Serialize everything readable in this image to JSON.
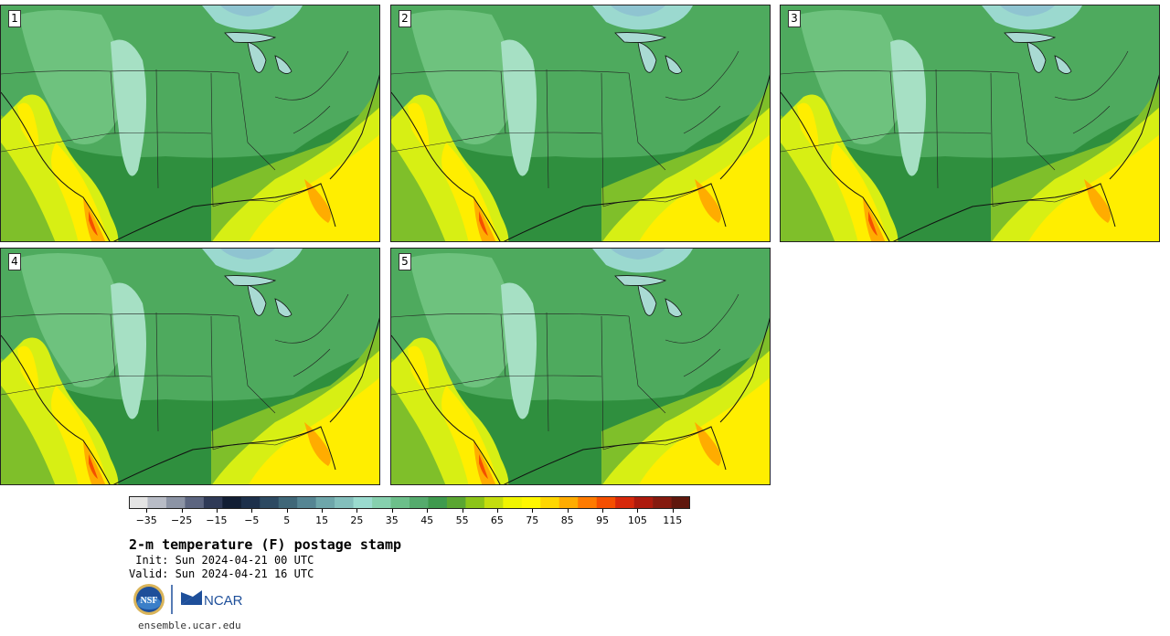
{
  "title": "2-m temperature (F) postage stamp",
  "init_line": " Init: Sun 2024-04-21 00 UTC",
  "valid_line": "Valid: Sun 2024-04-21 16 UTC",
  "site_url": "ensemble.ucar.edu",
  "logos": {
    "left": "nsf-logo",
    "right_text": "NCAR"
  },
  "members": [
    {
      "label": "1"
    },
    {
      "label": "2"
    },
    {
      "label": "3"
    },
    {
      "label": "4"
    },
    {
      "label": "5"
    }
  ],
  "colorbar": {
    "units": "F",
    "tick_labels": [
      "−35",
      "−25",
      "−15",
      "−5",
      "5",
      "15",
      "25",
      "35",
      "45",
      "55",
      "65",
      "75",
      "85",
      "95",
      "105",
      "115"
    ],
    "tick_values": [
      -35,
      -25,
      -15,
      -5,
      5,
      15,
      25,
      35,
      45,
      55,
      65,
      75,
      85,
      95,
      105,
      115
    ],
    "min": -40,
    "max": 120,
    "step": 5,
    "colors": [
      "#e4e4e4",
      "#b8bcc6",
      "#8c94a5",
      "#5c6580",
      "#2f3a57",
      "#121e34",
      "#1d304b",
      "#2d4a62",
      "#3f6778",
      "#558593",
      "#6ea6aa",
      "#83bfbc",
      "#9adbcf",
      "#86d0ae",
      "#6cbf8a",
      "#55ab6d",
      "#3f9a4e",
      "#5aa631",
      "#8cc418",
      "#c4dd0e",
      "#f0f400",
      "#fff700",
      "#ffd600",
      "#ffac00",
      "#ff7b00",
      "#f44f00",
      "#d7280a",
      "#ad1a0d",
      "#851a0f",
      "#5f170d"
    ]
  }
}
